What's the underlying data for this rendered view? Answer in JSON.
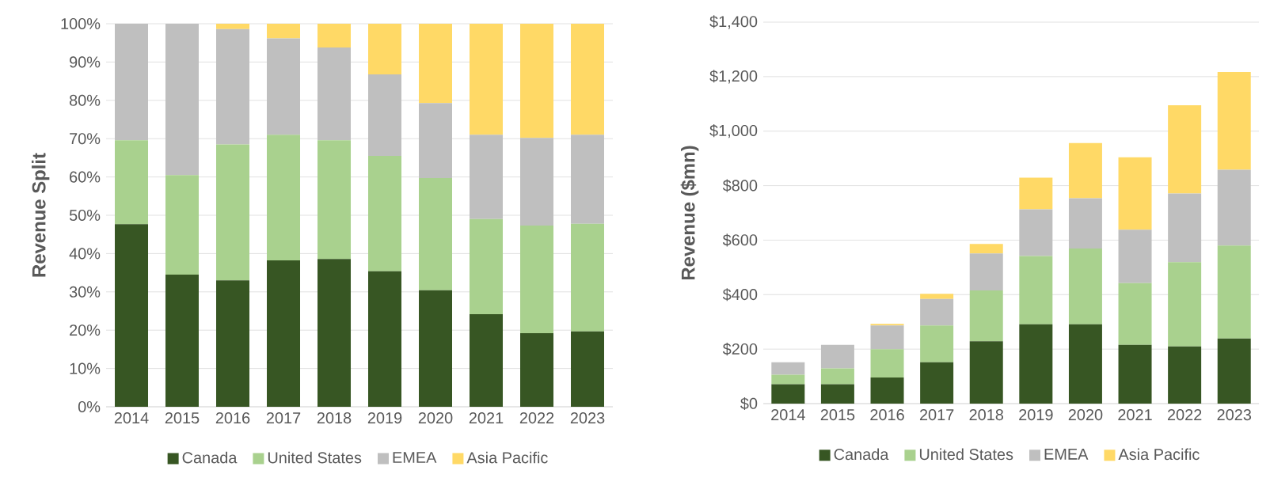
{
  "chart_data": [
    {
      "type": "bar",
      "stacked": true,
      "ylabel": "Revenue Split",
      "categories": [
        "2014",
        "2015",
        "2016",
        "2017",
        "2018",
        "2019",
        "2020",
        "2021",
        "2022",
        "2023"
      ],
      "series": [
        {
          "name": "Canada",
          "color": "#375623",
          "values": [
            47.7,
            34.5,
            33.0,
            38.2,
            38.6,
            35.4,
            30.4,
            24.2,
            19.2,
            19.7
          ]
        },
        {
          "name": "United States",
          "color": "#a9d18e",
          "values": [
            21.9,
            26.0,
            35.5,
            32.8,
            31.0,
            30.1,
            29.3,
            24.8,
            28.1,
            28.1
          ]
        },
        {
          "name": "EMEA",
          "color": "#bfbfbf",
          "values": [
            30.4,
            39.5,
            30.1,
            25.2,
            24.2,
            21.3,
            19.6,
            22.0,
            22.9,
            23.2
          ]
        },
        {
          "name": "Asia Pacific",
          "color": "#ffd966",
          "values": [
            0,
            0,
            1.4,
            3.8,
            6.2,
            13.2,
            20.7,
            29.0,
            29.8,
            29.0
          ]
        }
      ],
      "ylim": [
        0,
        100
      ],
      "yticks": [
        {
          "value": 0,
          "label": "0%"
        },
        {
          "value": 10,
          "label": "10%"
        },
        {
          "value": 20,
          "label": "20%"
        },
        {
          "value": 30,
          "label": "30%"
        },
        {
          "value": 40,
          "label": "40%"
        },
        {
          "value": 50,
          "label": "50%"
        },
        {
          "value": 60,
          "label": "60%"
        },
        {
          "value": 70,
          "label": "70%"
        },
        {
          "value": 80,
          "label": "80%"
        },
        {
          "value": 90,
          "label": "90%"
        },
        {
          "value": 100,
          "label": "100%"
        }
      ],
      "grid": "y",
      "legend": "bottom"
    },
    {
      "type": "bar",
      "stacked": true,
      "ylabel": "Revenue ($mn)",
      "categories": [
        "2014",
        "2015",
        "2016",
        "2017",
        "2018",
        "2019",
        "2020",
        "2021",
        "2022",
        "2023"
      ],
      "series": [
        {
          "name": "Canada",
          "color": "#375623",
          "values": [
            71,
            71,
            96,
            152,
            229,
            291,
            291,
            216,
            210,
            239
          ]
        },
        {
          "name": "United States",
          "color": "#a9d18e",
          "values": [
            35,
            58,
            104,
            135,
            186,
            251,
            278,
            226,
            309,
            341
          ]
        },
        {
          "name": "EMEA",
          "color": "#bfbfbf",
          "values": [
            46,
            87,
            87,
            97,
            136,
            171,
            185,
            196,
            252,
            278
          ]
        },
        {
          "name": "Asia Pacific",
          "color": "#ffd966",
          "values": [
            0,
            0,
            6,
            19,
            35,
            116,
            202,
            266,
            324,
            359
          ]
        }
      ],
      "ylim": [
        0,
        1400
      ],
      "yticks": [
        {
          "value": 0,
          "label": "$0"
        },
        {
          "value": 200,
          "label": "$200"
        },
        {
          "value": 400,
          "label": "$400"
        },
        {
          "value": 600,
          "label": "$600"
        },
        {
          "value": 800,
          "label": "$800"
        },
        {
          "value": 1000,
          "label": "$1,000"
        },
        {
          "value": 1200,
          "label": "$1,200"
        },
        {
          "value": 1400,
          "label": "$1,400"
        }
      ],
      "grid": "y",
      "legend": "bottom"
    }
  ]
}
